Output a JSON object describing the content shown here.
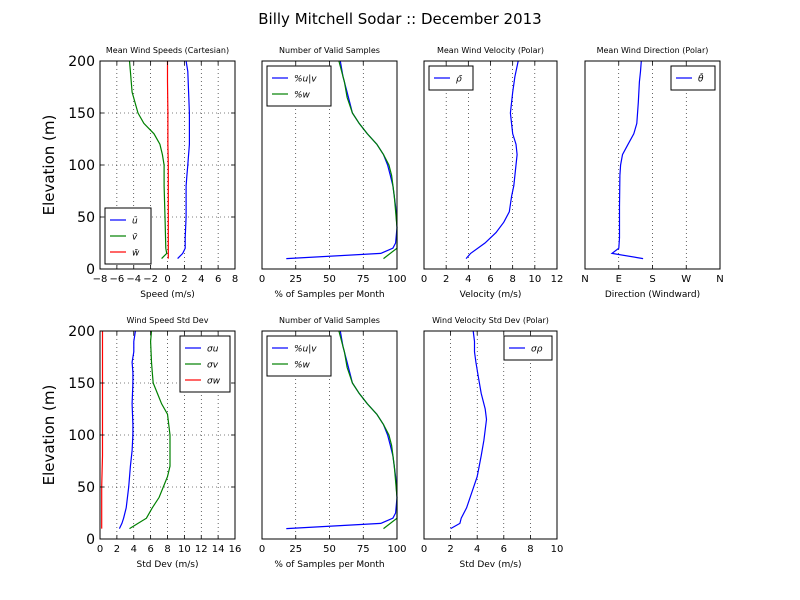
{
  "figure_title": "Billy Mitchell Sodar :: December 2013",
  "colors": {
    "blue": "#0000ff",
    "green": "#008000",
    "red": "#ff0000",
    "axis": "#000000"
  },
  "chart_data": [
    {
      "id": "p1",
      "type": "line",
      "title": "Mean Wind Speeds (Cartesian)",
      "xlabel": "Speed (m/s)",
      "ylabel": "Elevation (m)",
      "xlim": [
        -8,
        8
      ],
      "ylim": [
        0,
        200
      ],
      "xticks": [
        -8,
        -6,
        -4,
        -2,
        0,
        2,
        4,
        6,
        8
      ],
      "xtick_labels": [
        "−8",
        "−6",
        "−4",
        "−2",
        "0",
        "2",
        "4",
        "6",
        "8"
      ],
      "yticks": [
        0,
        50,
        100,
        150,
        200
      ],
      "ytick_labels": [
        "0",
        "50",
        "100",
        "150",
        "200"
      ],
      "xgrid": true,
      "legend": "lower-left",
      "series": [
        {
          "name": "ū",
          "color": "blue",
          "x": [
            1.2,
            1.8,
            2.1,
            2.1,
            2.2,
            2.2,
            2.3,
            2.4,
            2.5,
            2.6,
            2.6,
            2.6,
            2.5,
            2.4,
            2.2
          ],
          "y": [
            10,
            15,
            20,
            30,
            50,
            80,
            90,
            100,
            110,
            120,
            130,
            150,
            170,
            190,
            200
          ]
        },
        {
          "name": "v̄",
          "color": "green",
          "x": [
            -0.7,
            -0.1,
            -0.2,
            -0.3,
            -0.4,
            -0.4,
            -0.6,
            -0.9,
            -1.6,
            -2.8,
            -3.5,
            -4.2,
            -4.4,
            -4.5
          ],
          "y": [
            10,
            15,
            20,
            50,
            80,
            100,
            110,
            120,
            130,
            140,
            150,
            170,
            190,
            200
          ]
        },
        {
          "name": "w̄",
          "color": "red",
          "x": [
            0.1,
            0.1,
            0.1,
            0.1,
            0.1,
            0.05,
            0.05,
            0.0,
            0.0
          ],
          "y": [
            10,
            20,
            50,
            80,
            100,
            120,
            150,
            180,
            200
          ]
        }
      ]
    },
    {
      "id": "p2",
      "type": "line",
      "title": "Number of Valid Samples",
      "xlabel": "% of Samples per Month",
      "ylabel": "",
      "xlim": [
        0,
        100
      ],
      "ylim": [
        0,
        200
      ],
      "xticks": [
        0,
        25,
        50,
        75,
        100
      ],
      "xtick_labels": [
        "0",
        "25",
        "50",
        "75",
        "100"
      ],
      "yticks": [],
      "ytick_labels": [],
      "xgrid": true,
      "legend": "top-left",
      "series": [
        {
          "name": "%u|v",
          "color": "blue",
          "x": [
            18,
            88,
            97,
            99,
            100,
            99,
            97,
            95,
            93,
            90,
            85,
            78,
            72,
            67,
            65,
            63,
            60,
            58
          ],
          "y": [
            10,
            15,
            20,
            25,
            40,
            60,
            80,
            90,
            100,
            110,
            120,
            130,
            140,
            150,
            160,
            170,
            185,
            200
          ]
        },
        {
          "name": "%w",
          "color": "green",
          "x": [
            90,
            100,
            100,
            98,
            96,
            94,
            90,
            85,
            78,
            72,
            67,
            63,
            61,
            57
          ],
          "y": [
            10,
            20,
            40,
            70,
            90,
            100,
            110,
            120,
            130,
            140,
            150,
            165,
            180,
            200
          ]
        }
      ]
    },
    {
      "id": "p3",
      "type": "line",
      "title": "Mean Wind Velocity (Polar)",
      "xlabel": "Velocity (m/s)",
      "ylabel": "",
      "xlim": [
        0,
        12
      ],
      "ylim": [
        0,
        200
      ],
      "xticks": [
        0,
        2,
        4,
        6,
        8,
        10,
        12
      ],
      "xtick_labels": [
        "0",
        "2",
        "4",
        "6",
        "8",
        "10",
        "12"
      ],
      "yticks": [],
      "ytick_labels": [],
      "xgrid": true,
      "legend": "top-left",
      "series": [
        {
          "name": "ρ̄",
          "color": "blue",
          "x": [
            3.8,
            4.2,
            5.5,
            6.5,
            7.2,
            7.7,
            7.9,
            8.1,
            8.2,
            8.3,
            8.4,
            8.3,
            8.0,
            7.8,
            8.0,
            8.2,
            8.5
          ],
          "y": [
            10,
            15,
            25,
            35,
            45,
            55,
            70,
            80,
            90,
            100,
            110,
            120,
            130,
            150,
            170,
            185,
            200
          ]
        }
      ]
    },
    {
      "id": "p4",
      "type": "line",
      "title": "Mean Wind Direction (Polar)",
      "xlabel": "Direction (Windward)",
      "ylabel": "",
      "xlim": [
        0,
        360
      ],
      "ylim": [
        0,
        200
      ],
      "xticks": [
        0,
        90,
        180,
        270,
        360
      ],
      "xtick_labels": [
        "N",
        "E",
        "S",
        "W",
        "N"
      ],
      "yticks": [],
      "ytick_labels": [],
      "xgrid": true,
      "legend": "top-right",
      "series": [
        {
          "name": "θ̄",
          "color": "blue",
          "x": [
            155,
            72,
            90,
            92,
            92,
            93,
            95,
            100,
            115,
            130,
            138,
            142,
            145,
            148,
            150
          ],
          "y": [
            10,
            15,
            20,
            30,
            60,
            90,
            100,
            110,
            120,
            130,
            140,
            160,
            180,
            190,
            200
          ]
        }
      ]
    },
    {
      "id": "p5",
      "type": "line",
      "title": "Wind Speed Std Dev",
      "xlabel": "Std Dev (m/s)",
      "ylabel": "Elevation (m)",
      "xlim": [
        0,
        16
      ],
      "ylim": [
        0,
        200
      ],
      "xticks": [
        0,
        2,
        4,
        6,
        8,
        10,
        12,
        14,
        16
      ],
      "xtick_labels": [
        "0",
        "2",
        "4",
        "6",
        "8",
        "10",
        "12",
        "14",
        "16"
      ],
      "yticks": [
        0,
        50,
        100,
        150,
        200
      ],
      "ytick_labels": [
        "0",
        "50",
        "100",
        "150",
        "200"
      ],
      "xgrid": true,
      "legend": "top-right",
      "series": [
        {
          "name": "σu",
          "color": "blue",
          "x": [
            2.3,
            2.6,
            2.8,
            3.1,
            3.4,
            3.6,
            3.8,
            3.9,
            3.9,
            3.8,
            3.9,
            3.9,
            3.8,
            4.0,
            4.0,
            4.2
          ],
          "y": [
            10,
            15,
            20,
            30,
            50,
            70,
            85,
            100,
            110,
            130,
            150,
            160,
            170,
            180,
            190,
            200
          ]
        },
        {
          "name": "σv",
          "color": "green",
          "x": [
            3.5,
            4.5,
            5.5,
            6.2,
            7.0,
            7.5,
            8.0,
            8.3,
            8.3,
            8.3,
            8.0,
            7.3,
            6.8,
            6.3,
            6.2,
            6.1,
            6.0,
            6.1
          ],
          "y": [
            10,
            15,
            20,
            30,
            40,
            50,
            60,
            70,
            80,
            100,
            120,
            130,
            140,
            150,
            160,
            170,
            190,
            200
          ]
        },
        {
          "name": "σw",
          "color": "red",
          "x": [
            0.2,
            0.2,
            0.2,
            0.3,
            0.3,
            0.3,
            0.3,
            0.3
          ],
          "y": [
            10,
            20,
            50,
            80,
            100,
            150,
            180,
            200
          ]
        }
      ]
    },
    {
      "id": "p6",
      "type": "line",
      "title": "Number of Valid Samples",
      "xlabel": "% of Samples per Month",
      "ylabel": "",
      "xlim": [
        0,
        100
      ],
      "ylim": [
        0,
        200
      ],
      "xticks": [
        0,
        25,
        50,
        75,
        100
      ],
      "xtick_labels": [
        "0",
        "25",
        "50",
        "75",
        "100"
      ],
      "yticks": [],
      "ytick_labels": [],
      "xgrid": true,
      "legend": "top-left",
      "series": [
        {
          "name": "%u|v",
          "color": "blue",
          "x": [
            18,
            88,
            97,
            99,
            100,
            99,
            97,
            95,
            93,
            90,
            85,
            78,
            72,
            67,
            65,
            63,
            60,
            58
          ],
          "y": [
            10,
            15,
            20,
            25,
            40,
            60,
            80,
            90,
            100,
            110,
            120,
            130,
            140,
            150,
            160,
            170,
            185,
            200
          ]
        },
        {
          "name": "%w",
          "color": "green",
          "x": [
            90,
            100,
            100,
            98,
            96,
            94,
            90,
            85,
            78,
            72,
            67,
            63,
            61,
            57
          ],
          "y": [
            10,
            20,
            40,
            70,
            90,
            100,
            110,
            120,
            130,
            140,
            150,
            165,
            180,
            200
          ]
        }
      ]
    },
    {
      "id": "p7",
      "type": "line",
      "title": "Wind Velocity Std Dev (Polar)",
      "xlabel": "Std Dev (m/s)",
      "ylabel": "",
      "xlim": [
        0,
        10
      ],
      "ylim": [
        0,
        200
      ],
      "xticks": [
        0,
        2,
        4,
        6,
        8,
        10
      ],
      "xtick_labels": [
        "0",
        "2",
        "4",
        "6",
        "8",
        "10"
      ],
      "yticks": [],
      "ytick_labels": [],
      "xgrid": true,
      "legend": "top-right",
      "series": [
        {
          "name": "σρ",
          "color": "blue",
          "x": [
            2.0,
            2.7,
            2.8,
            3.2,
            3.6,
            4.0,
            4.3,
            4.5,
            4.6,
            4.7,
            4.6,
            4.3,
            4.1,
            3.9,
            3.8,
            3.8,
            3.7
          ],
          "y": [
            10,
            15,
            20,
            30,
            45,
            60,
            80,
            95,
            105,
            115,
            125,
            140,
            155,
            170,
            180,
            190,
            200
          ]
        }
      ]
    }
  ]
}
